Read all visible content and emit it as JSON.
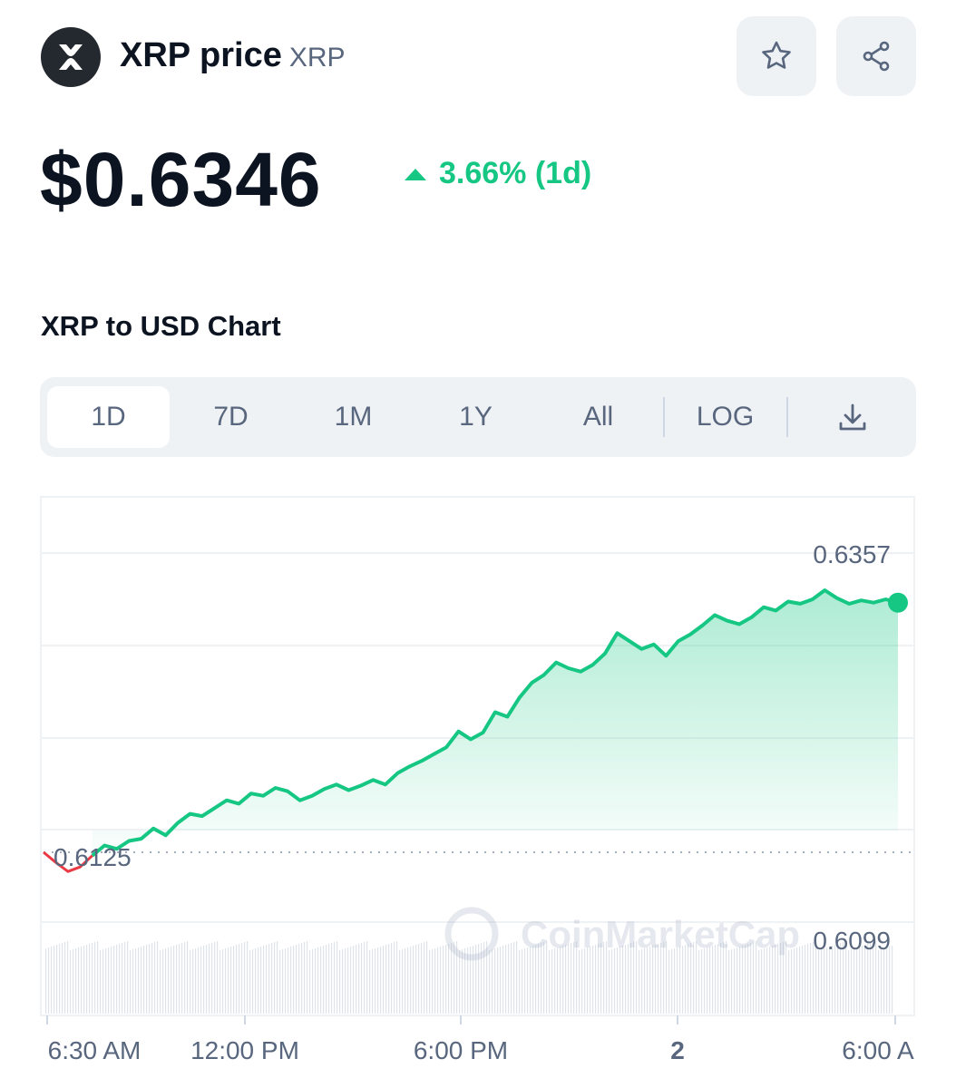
{
  "header": {
    "coin_name": "XRP price",
    "coin_symbol": "XRP",
    "logo_icon": "xrp-logo-icon",
    "watchlist_icon": "star-icon",
    "share_icon": "share-icon"
  },
  "price": {
    "value": "$0.6346",
    "change": "3.66% (1d)",
    "change_direction": "up",
    "change_color": "#16c784"
  },
  "chart_section": {
    "title": "XRP to USD Chart",
    "tabs": [
      {
        "label": "1D",
        "active": true
      },
      {
        "label": "7D",
        "active": false
      },
      {
        "label": "1M",
        "active": false
      },
      {
        "label": "1Y",
        "active": false
      },
      {
        "label": "All",
        "active": false
      },
      {
        "label": "LOG",
        "active": false
      }
    ],
    "download_icon": "download-icon"
  },
  "chart_data": {
    "type": "area",
    "watermark": "CoinMarketCap",
    "x_ticks": [
      "6:30 AM",
      "12:00 PM",
      "6:00 PM",
      "2",
      "6:00 A"
    ],
    "high_label": "0.6357",
    "open_label": "0.6125",
    "low_label": "0.6099",
    "line_color": "#16c784",
    "down_color": "#ea3943",
    "series": [
      {
        "values": [
          0.6125,
          0.6116,
          0.6108,
          0.6112,
          0.6122,
          0.6131,
          0.6128,
          0.6135,
          0.6137,
          0.6146,
          0.614,
          0.6151,
          0.6159,
          0.6157,
          0.6164,
          0.6171,
          0.6168,
          0.6177,
          0.6175,
          0.6182,
          0.6179,
          0.6171,
          0.6175,
          0.6181,
          0.6185,
          0.618,
          0.6184,
          0.6189,
          0.6185,
          0.6195,
          0.6201,
          0.6206,
          0.6212,
          0.6218,
          0.6232,
          0.6225,
          0.6231,
          0.6249,
          0.6245,
          0.6262,
          0.6275,
          0.6282,
          0.6293,
          0.6288,
          0.6285,
          0.6291,
          0.6301,
          0.6319,
          0.6312,
          0.6305,
          0.6309,
          0.6299,
          0.6312,
          0.6318,
          0.6326,
          0.6335,
          0.633,
          0.6327,
          0.6333,
          0.6342,
          0.6339,
          0.6347,
          0.6345,
          0.6349,
          0.6357,
          0.635,
          0.6345,
          0.6348,
          0.6346,
          0.6349,
          0.6346
        ]
      }
    ]
  }
}
